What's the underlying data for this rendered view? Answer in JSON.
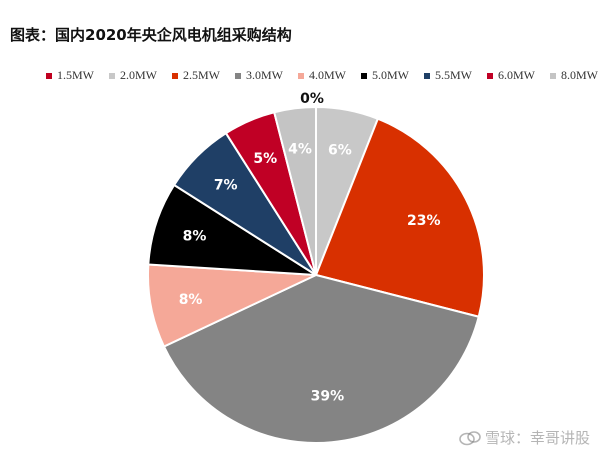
{
  "title": "图表：国内2020年央企风电机组采购结构",
  "watermark": "雪球：幸哥讲股",
  "chart_data": {
    "type": "pie",
    "title": "图表：国内2020年央企风电机组采购结构",
    "legend_position": "top",
    "slices": [
      {
        "name": "1.5MW",
        "value": 0,
        "label": "",
        "color": "#c00020"
      },
      {
        "name": "2.0MW",
        "value": 6,
        "label": "6%",
        "color": "#c8c8c8"
      },
      {
        "name": "2.5MW",
        "value": 23,
        "label": "23%",
        "color": "#d83000"
      },
      {
        "name": "3.0MW",
        "value": 39,
        "label": "39%",
        "color": "#848484"
      },
      {
        "name": "4.0MW",
        "value": 8,
        "label": "8%",
        "color": "#f5a898"
      },
      {
        "name": "5.0MW",
        "value": 8,
        "label": "8%",
        "color": "#000000"
      },
      {
        "name": "5.5MW",
        "value": 7,
        "label": "7%",
        "color": "#1f3f66"
      },
      {
        "name": "6.0MW",
        "value": 5,
        "label": "5%",
        "color": "#c00025"
      },
      {
        "name": "8.0MW",
        "value": 4,
        "label": "4%",
        "color": "#c4c4c4"
      }
    ],
    "extra_labels": [
      "0%"
    ]
  }
}
